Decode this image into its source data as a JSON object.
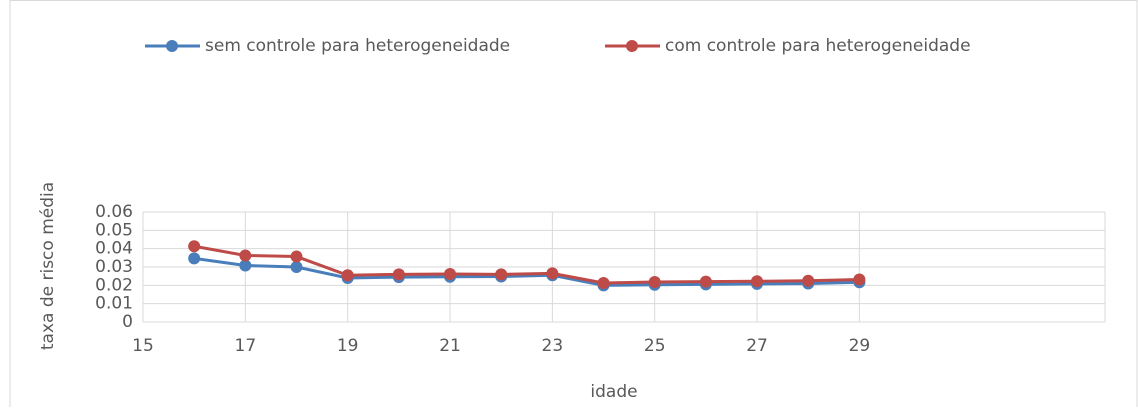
{
  "chart_data": {
    "type": "line",
    "x_label": "idade",
    "y_label": "taxa de risco média",
    "x": [
      16,
      17,
      18,
      19,
      20,
      21,
      22,
      23,
      24,
      25,
      26,
      27,
      28,
      29
    ],
    "series": [
      {
        "name": "sem controle para heterogeneidade",
        "color": "#4a7ebb",
        "values": [
          0.0347,
          0.0308,
          0.03,
          0.024,
          0.0245,
          0.0247,
          0.0248,
          0.0255,
          0.02,
          0.0203,
          0.0205,
          0.0208,
          0.021,
          0.0217
        ]
      },
      {
        "name": "com controle para heterogeneidade",
        "color": "#be4b48",
        "values": [
          0.0413,
          0.0363,
          0.0357,
          0.0255,
          0.026,
          0.0262,
          0.026,
          0.0265,
          0.0213,
          0.0218,
          0.022,
          0.0222,
          0.0225,
          0.0232
        ]
      }
    ],
    "xlim": [
      15,
      33.8
    ],
    "xticks": [
      15,
      17,
      19,
      21,
      23,
      25,
      27,
      29
    ],
    "ylim": [
      0,
      0.06
    ],
    "yticks": [
      0,
      0.01,
      0.02,
      0.03,
      0.04,
      0.05,
      0.06
    ],
    "grid": true,
    "legend": "top"
  }
}
